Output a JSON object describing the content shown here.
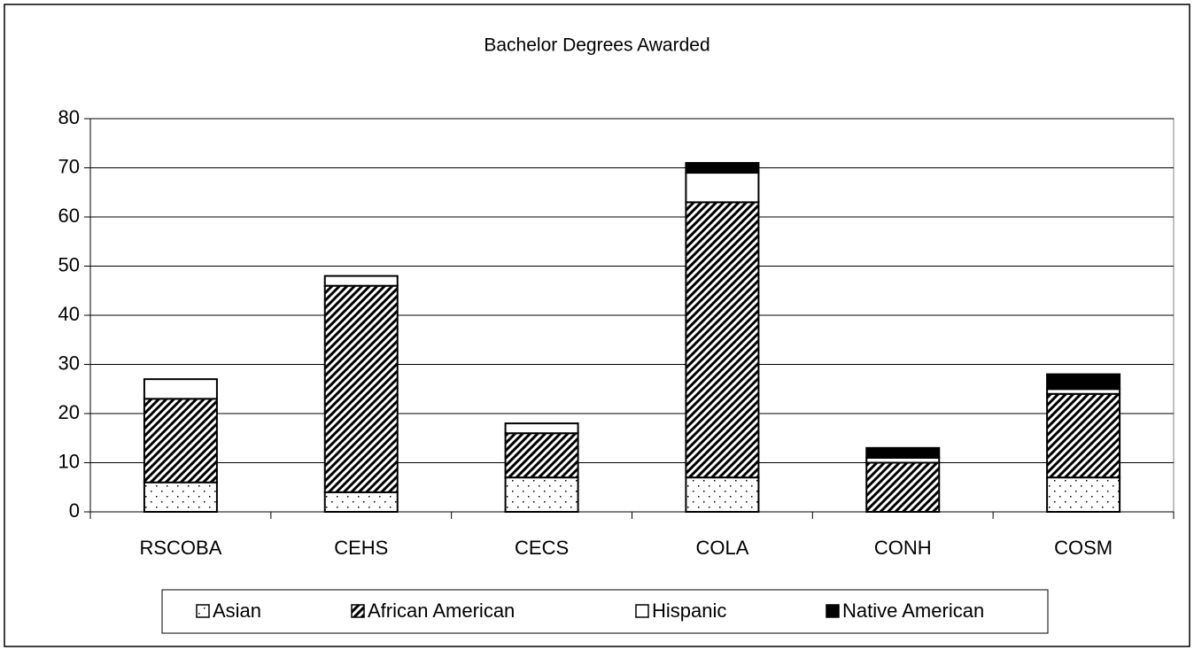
{
  "chart_data": {
    "type": "stacked_bar",
    "title": "Bachelor Degrees Awarded",
    "categories": [
      "RSCOBA",
      "CEHS",
      "CECS",
      "COLA",
      "CONH",
      "COSM"
    ],
    "series": [
      {
        "name": "Asian",
        "color": "#ffffff",
        "pattern": "dots",
        "values": [
          6,
          4,
          7,
          7,
          0,
          7
        ]
      },
      {
        "name": "African American",
        "color": "#000000",
        "pattern": "hatch",
        "values": [
          17,
          42,
          9,
          56,
          10,
          17
        ]
      },
      {
        "name": "Hispanic",
        "color": "#ffffff",
        "pattern": "none",
        "values": [
          4,
          2,
          2,
          6,
          1,
          1
        ]
      },
      {
        "name": "Native American",
        "color": "#000000",
        "pattern": "none",
        "values": [
          0,
          0,
          0,
          2,
          2,
          3
        ]
      }
    ],
    "ylim": [
      0,
      80
    ],
    "yticks": [
      0,
      10,
      20,
      30,
      40,
      50,
      60,
      70,
      80
    ],
    "grid": true,
    "legend": "bottom"
  }
}
